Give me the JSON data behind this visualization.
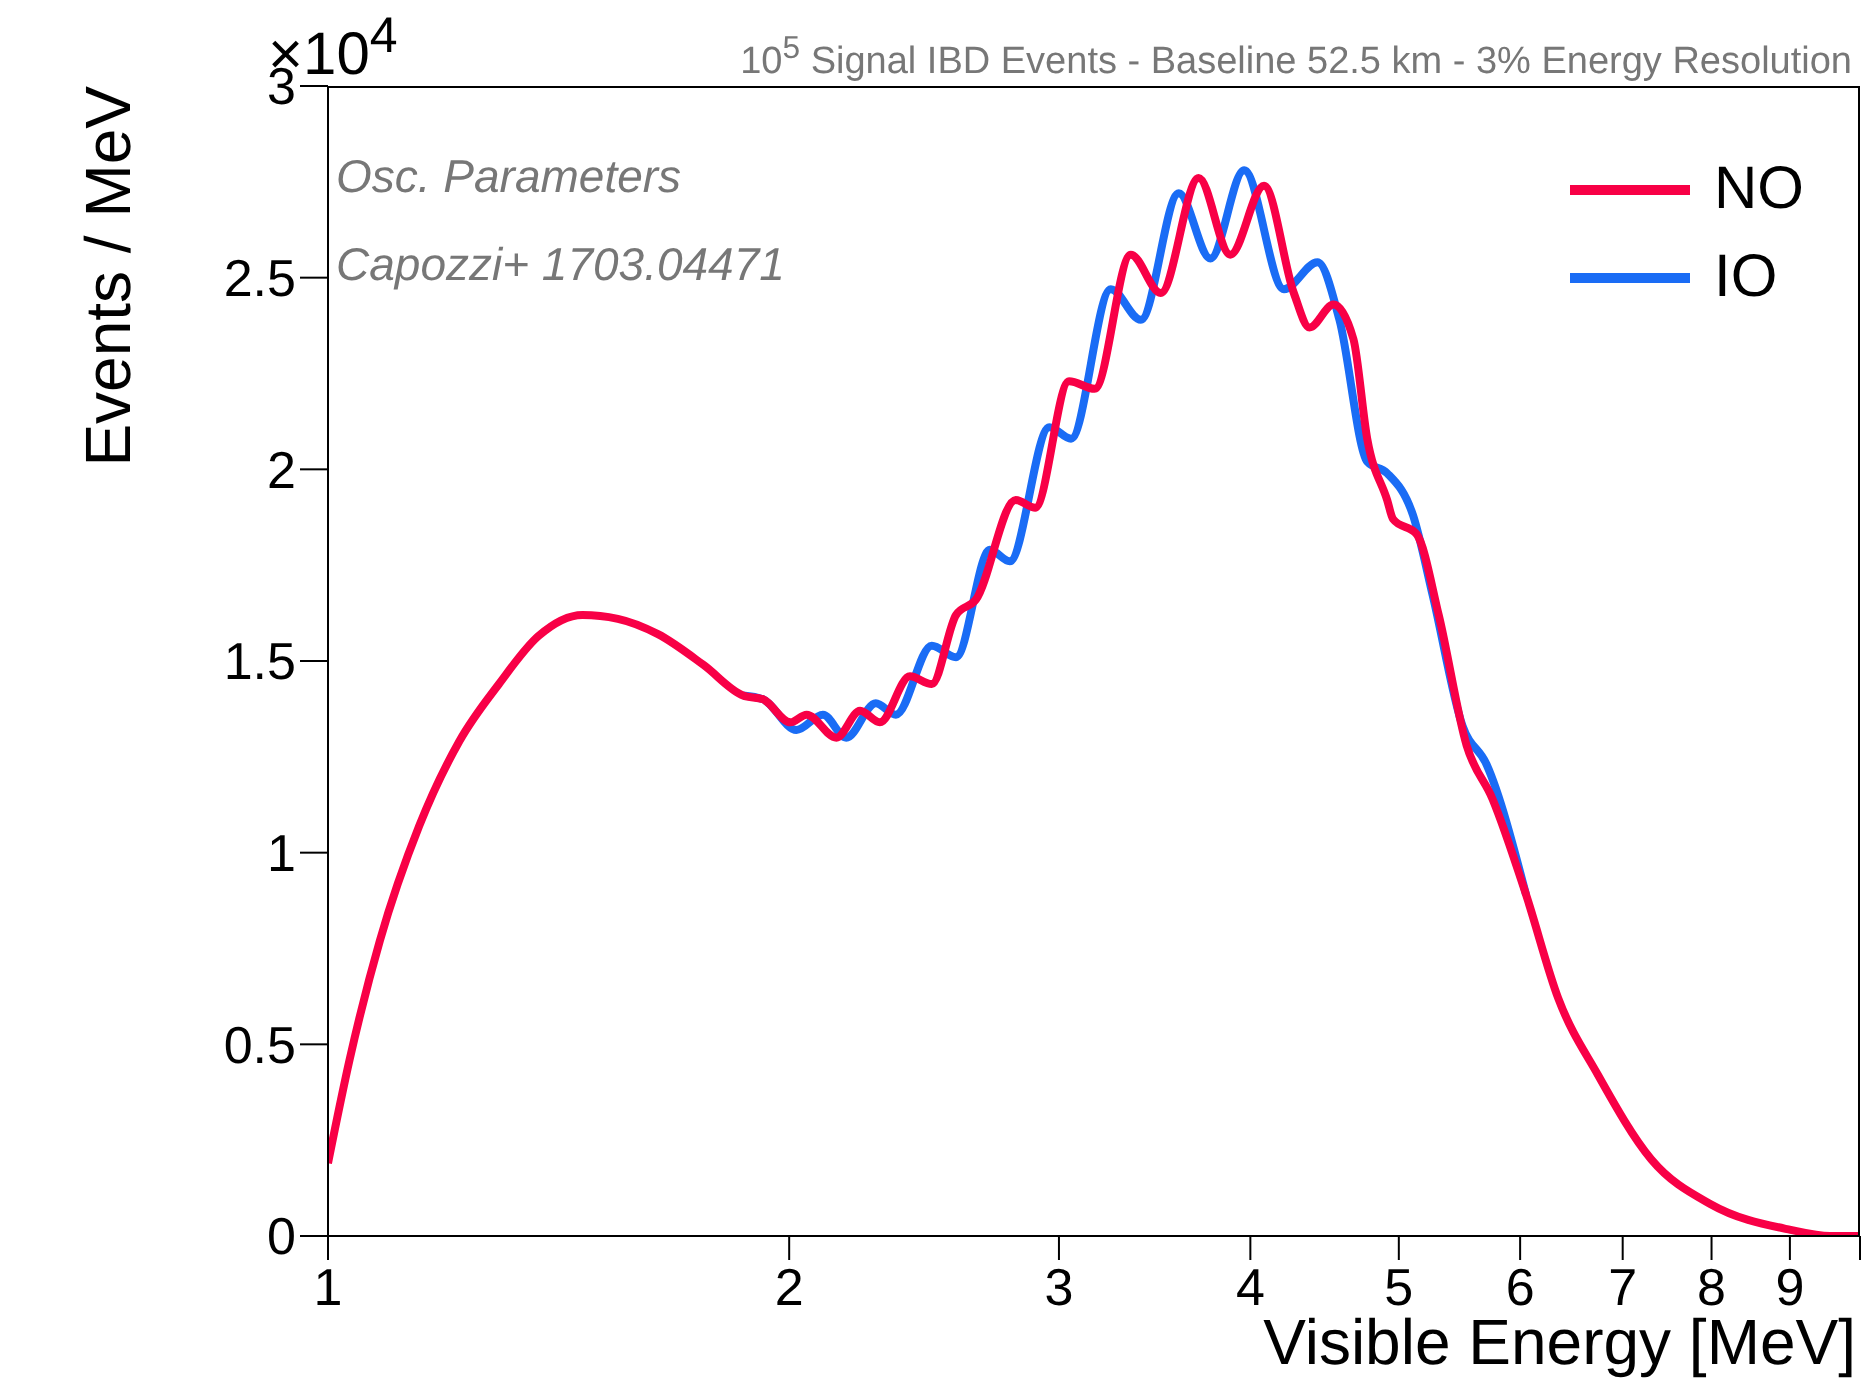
{
  "chart_data": {
    "type": "line",
    "title": "10$^{5}$ Signal IBD Events - Baseline 52.5 km - 3% Energy Resolution",
    "xlabel": "Visible Energy [MeV]",
    "ylabel": "Events / MeV",
    "annotations": [
      "×10$^{4}$",
      "Osc. Parameters",
      "Capozzi+ 1703.04471"
    ],
    "log": "x",
    "xlim": [
      1,
      10
    ],
    "xticks": [
      1,
      2,
      3,
      4,
      5,
      6,
      7,
      8,
      9,
      {
        "value": 10,
        "label": null
      }
    ],
    "ylim": [
      0,
      3
    ],
    "yticks": [
      0,
      0.5,
      1,
      1.5,
      2,
      2.5,
      3
    ],
    "grid": false,
    "legend": "top right",
    "line_style": "solid",
    "marker": "none",
    "series": [
      {
        "name": "NO",
        "color": "#f80046",
        "x": [
          1.0,
          1.033,
          1.081,
          1.147,
          1.218,
          1.293,
          1.372,
          1.466,
          1.546,
          1.642,
          1.758,
          1.866,
          1.923,
          2.004,
          2.053,
          2.147,
          2.225,
          2.292,
          2.398,
          2.478,
          2.57,
          2.648,
          2.811,
          2.895,
          3.046,
          3.166,
          3.342,
          3.496,
          3.701,
          3.881,
          4.083,
          4.27,
          4.372,
          4.532,
          4.67,
          4.768,
          4.913,
          4.957,
          5.138,
          5.309,
          5.536,
          5.756,
          6.054,
          6.354,
          6.745,
          7.307,
          7.99,
          9.01,
          9.56,
          10
        ],
        "values": [
          0.19,
          0.46,
          0.77,
          1.07,
          1.29,
          1.44,
          1.565,
          1.62,
          1.61,
          1.57,
          1.49,
          1.41,
          1.4,
          1.34,
          1.36,
          1.3,
          1.37,
          1.34,
          1.46,
          1.44,
          1.62,
          1.66,
          1.92,
          1.9,
          2.23,
          2.21,
          2.56,
          2.46,
          2.76,
          2.56,
          2.74,
          2.46,
          2.37,
          2.43,
          2.34,
          2.08,
          1.92,
          1.87,
          1.83,
          1.62,
          1.28,
          1.14,
          0.89,
          0.62,
          0.42,
          0.2,
          0.083,
          0.016,
          0,
          0
        ]
      },
      {
        "name": "IO",
        "color": "#1a6cf5",
        "x": [
          1.866,
          1.923,
          2.022,
          2.104,
          2.179,
          2.278,
          2.348,
          2.478,
          2.57,
          2.704,
          2.786,
          2.957,
          3.055,
          3.243,
          3.393,
          3.592,
          3.767,
          3.963,
          4.207,
          4.425,
          4.573,
          4.768,
          4.913,
          5.108,
          5.262,
          5.503,
          5.705,
          6.054
        ],
        "values": [
          1.41,
          1.4,
          1.32,
          1.36,
          1.3,
          1.39,
          1.36,
          1.54,
          1.51,
          1.79,
          1.76,
          2.11,
          2.08,
          2.47,
          2.39,
          2.72,
          2.55,
          2.78,
          2.47,
          2.54,
          2.39,
          2.02,
          1.99,
          1.88,
          1.67,
          1.33,
          1.23,
          0.89
        ]
      }
    ]
  }
}
